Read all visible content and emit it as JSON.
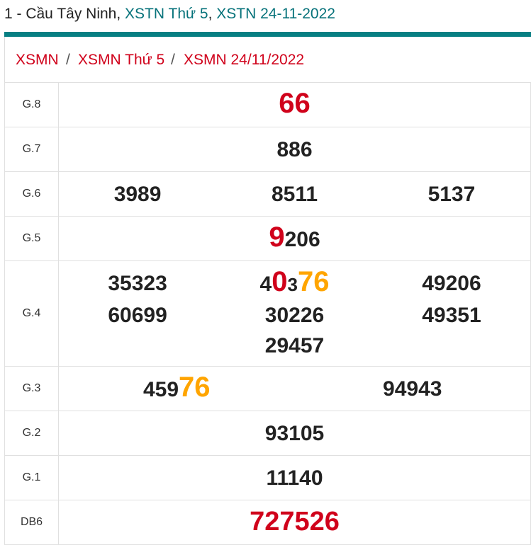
{
  "header": {
    "prefix": "1 - Cầu Tây Ninh, ",
    "link1": "XSTN Thứ 5",
    "comma": ", ",
    "link2": "XSTN 24-11-2022"
  },
  "breadcrumb": [
    "XSMN",
    "XSMN Thứ 5",
    "XSMN 24/11/2022"
  ],
  "breadcrumb_sep": "/",
  "colors": {
    "accent": "#077f83",
    "red": "#d0021b",
    "orange": "#ffa500"
  },
  "prizes": [
    {
      "label": "G.8",
      "numbers": [
        [
          {
            "t": "66",
            "c": "red big"
          }
        ]
      ]
    },
    {
      "label": "G.7",
      "numbers": [
        [
          {
            "t": "886",
            "c": ""
          }
        ]
      ]
    },
    {
      "label": "G.6",
      "numbers": [
        [
          {
            "t": "3989",
            "c": ""
          }
        ],
        [
          {
            "t": "8511",
            "c": ""
          }
        ],
        [
          {
            "t": "5137",
            "c": ""
          }
        ]
      ]
    },
    {
      "label": "G.5",
      "numbers": [
        [
          {
            "t": "9",
            "c": "red big"
          },
          {
            "t": "206",
            "c": ""
          }
        ]
      ]
    },
    {
      "label": "G.4",
      "numbers": [
        [
          {
            "t": "35323",
            "c": ""
          }
        ],
        [
          {
            "t": "4",
            "c": ""
          },
          {
            "t": "0",
            "c": "red big"
          },
          {
            "t": "3",
            "c": "sm"
          },
          {
            "t": "76",
            "c": "org big"
          }
        ],
        [
          {
            "t": "49206",
            "c": ""
          }
        ],
        [
          {
            "t": "60699",
            "c": ""
          }
        ],
        [
          {
            "t": "30226",
            "c": ""
          }
        ],
        [
          {
            "t": "49351",
            "c": ""
          }
        ],
        [
          {
            "t": "29457",
            "c": ""
          }
        ]
      ]
    },
    {
      "label": "G.3",
      "cols": 2,
      "numbers": [
        [
          {
            "t": "459",
            "c": ""
          },
          {
            "t": "76",
            "c": "org big"
          }
        ],
        [
          {
            "t": "94943",
            "c": ""
          }
        ]
      ]
    },
    {
      "label": "G.2",
      "numbers": [
        [
          {
            "t": "93105",
            "c": ""
          }
        ]
      ]
    },
    {
      "label": "G.1",
      "numbers": [
        [
          {
            "t": "11140",
            "c": ""
          }
        ]
      ]
    },
    {
      "label": "DB6",
      "numbers": [
        [
          {
            "t": "727526",
            "c": "red jack"
          }
        ]
      ]
    }
  ]
}
